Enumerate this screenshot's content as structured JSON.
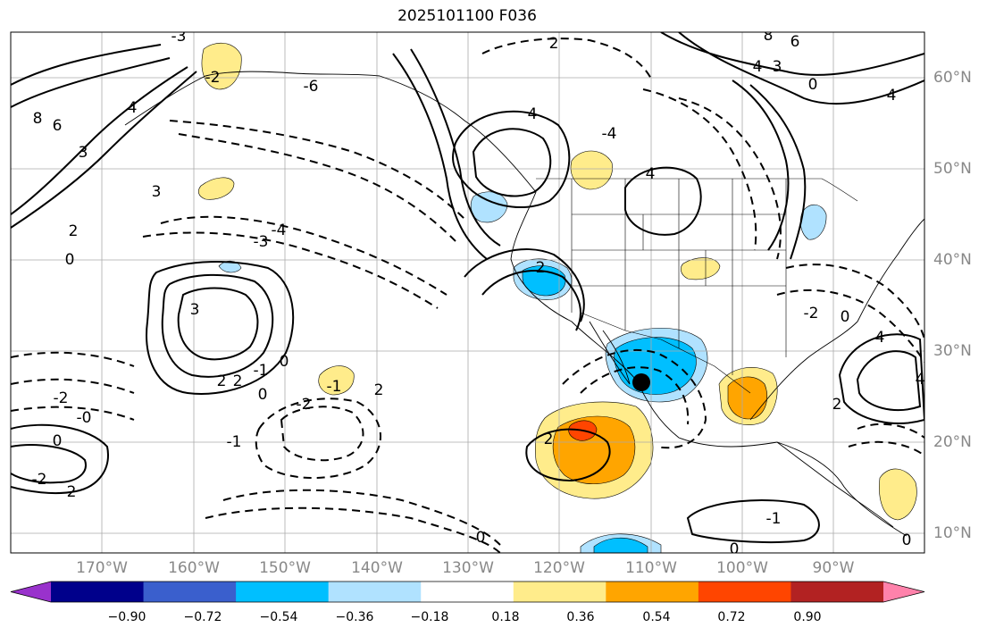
{
  "title": "2025101100 F036",
  "lat_labels": [
    "60°N",
    "50°N",
    "40°N",
    "30°N",
    "20°N",
    "10°N"
  ],
  "lon_labels": [
    "170°W",
    "160°W",
    "150°W",
    "140°W",
    "130°W",
    "120°W",
    "110°W",
    "100°W",
    "90°W"
  ],
  "colorbar": {
    "ticks": [
      "−0.90",
      "−0.72",
      "−0.54",
      "−0.36",
      "−0.18",
      "0.18",
      "0.36",
      "0.54",
      "0.72",
      "0.90"
    ],
    "colors": [
      "#9932cc",
      "#00008b",
      "#3a5fcd",
      "#00bfff",
      "#b0e2ff",
      "#ffffff",
      "#ffec8b",
      "#ffa500",
      "#ff4500",
      "#b22222",
      "#ff82ab"
    ]
  },
  "contour_labels": [
    "2",
    "-6",
    "8",
    "6",
    "3",
    "3",
    "-4",
    "-3",
    "0",
    "2",
    "2",
    "-4",
    "4",
    "4",
    "4",
    "3",
    "8",
    "6",
    "4",
    "0",
    "4",
    "-3",
    "-2",
    "3",
    "2",
    "2",
    "-1",
    "0",
    "0",
    "-2",
    "-0",
    "0",
    "-2",
    "2",
    "-2",
    "-1",
    "2",
    "-1",
    "2",
    "4",
    "2",
    "4",
    "0",
    "0",
    "0",
    "-1",
    "0",
    "-2"
  ],
  "marker": "storm-center-marker"
}
